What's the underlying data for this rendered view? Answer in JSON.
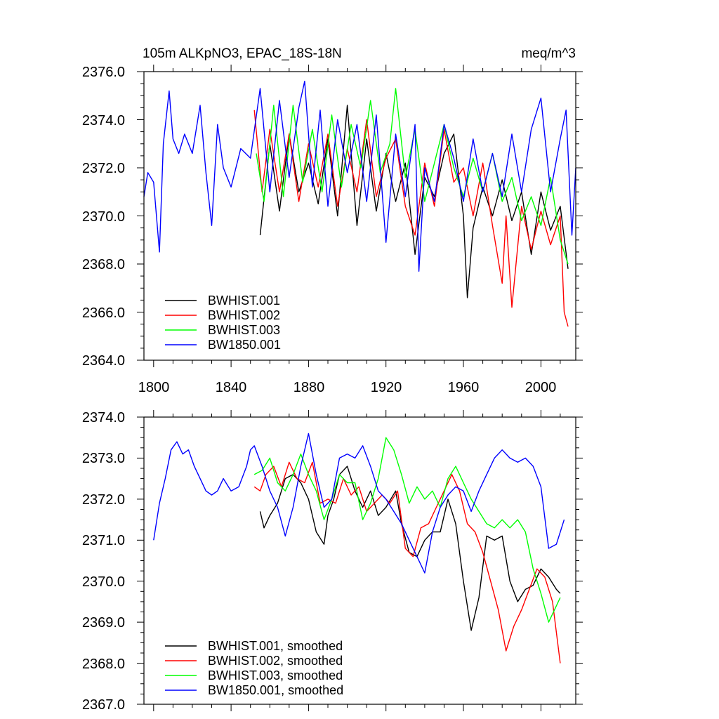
{
  "chart_data": [
    {
      "type": "line",
      "title": "105m ALKpNO3, EPAC_18S-18N",
      "units": "meq/m^3",
      "xlabel": "",
      "ylabel": "",
      "xlim": [
        1795,
        2018
      ],
      "ylim": [
        2364.0,
        2376.0
      ],
      "xticks": [
        1800,
        1840,
        1880,
        1920,
        1960,
        2000
      ],
      "xtick_labels": [
        "1800",
        "1840",
        "1880",
        "1920",
        "1960",
        "2000"
      ],
      "yticks": [
        2364,
        2366,
        2368,
        2370,
        2372,
        2374,
        2376
      ],
      "ytick_labels": [
        "2364.0",
        "2366.0",
        "2368.0",
        "2370.0",
        "2372.0",
        "2374.0",
        "2376.0"
      ],
      "legend_position": "bottom-left",
      "series": [
        {
          "name": "BWHIST.001",
          "color": "#000000",
          "x": [
            1855,
            1860,
            1865,
            1870,
            1875,
            1880,
            1885,
            1890,
            1895,
            1900,
            1905,
            1910,
            1915,
            1920,
            1925,
            1930,
            1935,
            1940,
            1945,
            1950,
            1955,
            1960,
            1962,
            1965,
            1970,
            1975,
            1980,
            1985,
            1990,
            1995,
            2000,
            2005,
            2010,
            2014
          ],
          "values": [
            2369.2,
            2373.0,
            2370.2,
            2373.4,
            2371.0,
            2372.2,
            2370.5,
            2373.2,
            2370.0,
            2374.6,
            2369.6,
            2373.2,
            2370.2,
            2372.6,
            2370.6,
            2372.2,
            2368.4,
            2371.6,
            2370.8,
            2372.6,
            2373.4,
            2370.0,
            2366.6,
            2369.5,
            2371.2,
            2370.0,
            2371.5,
            2369.8,
            2371.0,
            2368.4,
            2371.0,
            2369.4,
            2370.4,
            2367.8
          ]
        },
        {
          "name": "BWHIST.002",
          "color": "#ff0000",
          "x": [
            1852,
            1856,
            1860,
            1865,
            1870,
            1875,
            1880,
            1885,
            1890,
            1895,
            1900,
            1905,
            1910,
            1915,
            1920,
            1925,
            1930,
            1935,
            1940,
            1945,
            1950,
            1955,
            1960,
            1965,
            1970,
            1975,
            1980,
            1982,
            1985,
            1990,
            1995,
            2000,
            2005,
            2010,
            2012,
            2014
          ],
          "values": [
            2374.4,
            2371.0,
            2373.6,
            2371.0,
            2373.4,
            2370.6,
            2373.0,
            2371.2,
            2373.4,
            2370.4,
            2372.8,
            2371.0,
            2374.0,
            2370.8,
            2372.4,
            2373.2,
            2370.4,
            2369.2,
            2372.2,
            2370.4,
            2373.6,
            2371.4,
            2372.0,
            2370.0,
            2372.2,
            2369.6,
            2367.2,
            2370.0,
            2366.2,
            2370.4,
            2368.6,
            2370.2,
            2368.8,
            2370.0,
            2366.0,
            2365.4
          ]
        },
        {
          "name": "BWHIST.003",
          "color": "#00ff00",
          "x": [
            1853,
            1857,
            1862,
            1867,
            1872,
            1877,
            1882,
            1887,
            1892,
            1897,
            1902,
            1907,
            1912,
            1917,
            1922,
            1925,
            1930,
            1935,
            1940,
            1945,
            1950,
            1955,
            1960,
            1965,
            1970,
            1975,
            1980,
            1985,
            1990,
            1995,
            2000,
            2005,
            2010,
            2014
          ],
          "values": [
            2372.6,
            2370.6,
            2374.6,
            2370.8,
            2374.6,
            2371.4,
            2373.6,
            2371.0,
            2374.2,
            2371.2,
            2373.8,
            2372.0,
            2374.8,
            2371.8,
            2373.0,
            2375.3,
            2371.6,
            2373.6,
            2370.6,
            2372.2,
            2373.8,
            2372.0,
            2370.8,
            2372.4,
            2371.0,
            2372.6,
            2370.6,
            2371.6,
            2369.8,
            2370.8,
            2369.6,
            2371.6,
            2369.0,
            2368.0
          ]
        },
        {
          "name": "BW1850.001",
          "color": "#0000ff",
          "x": [
            1795,
            1797,
            1800,
            1803,
            1805,
            1808,
            1810,
            1813,
            1816,
            1820,
            1824,
            1827,
            1830,
            1833,
            1836,
            1840,
            1845,
            1850,
            1855,
            1860,
            1865,
            1870,
            1875,
            1878,
            1882,
            1886,
            1890,
            1895,
            1900,
            1905,
            1910,
            1915,
            1920,
            1925,
            1930,
            1935,
            1937,
            1940,
            1945,
            1950,
            1955,
            1960,
            1965,
            1970,
            1975,
            1980,
            1985,
            1990,
            1995,
            2000,
            2005,
            2010,
            2013,
            2016,
            2018
          ],
          "values": [
            2370.8,
            2371.8,
            2371.4,
            2368.5,
            2373.0,
            2375.2,
            2373.2,
            2372.6,
            2373.4,
            2372.6,
            2374.6,
            2371.8,
            2369.6,
            2373.8,
            2372.0,
            2371.2,
            2372.8,
            2372.4,
            2375.3,
            2371.0,
            2374.8,
            2371.6,
            2374.5,
            2375.6,
            2371.2,
            2374.4,
            2370.4,
            2374.0,
            2371.8,
            2373.8,
            2370.6,
            2374.2,
            2368.9,
            2373.4,
            2370.8,
            2373.8,
            2367.7,
            2372.0,
            2370.6,
            2373.8,
            2372.4,
            2370.6,
            2373.2,
            2371.0,
            2372.6,
            2370.8,
            2373.4,
            2371.0,
            2373.6,
            2374.9,
            2371.0,
            2373.2,
            2374.4,
            2369.2,
            2372.0
          ]
        }
      ]
    },
    {
      "type": "line",
      "title": "",
      "xlabel": "",
      "ylabel": "",
      "xlim": [
        1795,
        2018
      ],
      "ylim": [
        2367.0,
        2374.0
      ],
      "xticks": [
        1800,
        1840,
        1880,
        1920,
        1960,
        2000
      ],
      "yticks": [
        2367,
        2368,
        2369,
        2370,
        2371,
        2372,
        2373,
        2374
      ],
      "ytick_labels": [
        "2367.0",
        "2368.0",
        "2369.0",
        "2370.0",
        "2371.0",
        "2372.0",
        "2373.0",
        "2374.0"
      ],
      "legend_position": "bottom-left",
      "series": [
        {
          "name": "BWHIST.001, smoothed",
          "color": "#000000",
          "x": [
            1855,
            1857,
            1860,
            1864,
            1868,
            1872,
            1876,
            1880,
            1884,
            1888,
            1890,
            1893,
            1896,
            1900,
            1904,
            1908,
            1912,
            1916,
            1920,
            1925,
            1928,
            1932,
            1936,
            1940,
            1944,
            1948,
            1952,
            1956,
            1960,
            1964,
            1968,
            1972,
            1976,
            1980,
            1984,
            1988,
            1992,
            1996,
            2000,
            2004,
            2008,
            2010
          ],
          "values": [
            2371.7,
            2371.3,
            2371.6,
            2371.9,
            2372.5,
            2372.6,
            2372.4,
            2372.0,
            2371.2,
            2370.9,
            2371.6,
            2372.0,
            2372.6,
            2372.8,
            2372.2,
            2371.8,
            2372.2,
            2371.6,
            2371.8,
            2372.2,
            2371.4,
            2370.7,
            2370.6,
            2371.0,
            2371.2,
            2371.2,
            2372.0,
            2371.4,
            2370.0,
            2368.8,
            2369.6,
            2371.1,
            2371.0,
            2371.1,
            2370.0,
            2369.5,
            2369.8,
            2369.9,
            2370.3,
            2370.1,
            2369.8,
            2369.7
          ]
        },
        {
          "name": "BWHIST.002, smoothed",
          "color": "#ff0000",
          "x": [
            1852,
            1855,
            1858,
            1862,
            1866,
            1870,
            1874,
            1878,
            1882,
            1886,
            1890,
            1894,
            1898,
            1902,
            1906,
            1910,
            1914,
            1918,
            1922,
            1926,
            1930,
            1934,
            1938,
            1942,
            1946,
            1950,
            1954,
            1958,
            1962,
            1966,
            1970,
            1974,
            1978,
            1982,
            1986,
            1990,
            1994,
            1998,
            2002,
            2006,
            2010
          ],
          "values": [
            2372.3,
            2372.2,
            2372.6,
            2372.8,
            2372.3,
            2372.9,
            2372.5,
            2372.4,
            2372.9,
            2371.9,
            2372.0,
            2371.9,
            2372.5,
            2372.1,
            2372.3,
            2371.7,
            2371.9,
            2372.1,
            2371.9,
            2372.2,
            2370.8,
            2370.6,
            2371.3,
            2371.4,
            2371.8,
            2372.2,
            2372.6,
            2372.2,
            2371.4,
            2371.2,
            2370.7,
            2370.0,
            2369.3,
            2368.3,
            2368.9,
            2369.3,
            2369.8,
            2370.3,
            2370.1,
            2369.5,
            2368.0
          ]
        },
        {
          "name": "BWHIST.003, smoothed",
          "color": "#00ff00",
          "x": [
            1852,
            1856,
            1860,
            1864,
            1868,
            1872,
            1876,
            1880,
            1884,
            1888,
            1892,
            1896,
            1900,
            1904,
            1908,
            1912,
            1916,
            1920,
            1924,
            1928,
            1932,
            1936,
            1940,
            1944,
            1948,
            1952,
            1956,
            1960,
            1964,
            1968,
            1972,
            1976,
            1980,
            1984,
            1988,
            1992,
            1996,
            2000,
            2004,
            2008,
            2010
          ],
          "values": [
            2372.6,
            2372.7,
            2373.0,
            2372.4,
            2372.2,
            2372.6,
            2373.1,
            2372.6,
            2372.2,
            2371.5,
            2372.0,
            2372.6,
            2372.4,
            2372.4,
            2371.5,
            2371.9,
            2372.5,
            2373.5,
            2373.2,
            2372.6,
            2371.9,
            2372.3,
            2372.0,
            2372.2,
            2371.8,
            2372.5,
            2372.8,
            2372.4,
            2372.0,
            2371.7,
            2371.4,
            2371.3,
            2371.5,
            2371.3,
            2371.5,
            2371.2,
            2370.3,
            2369.7,
            2369.0,
            2369.4,
            2369.6
          ]
        },
        {
          "name": "BW1850.001, smoothed",
          "color": "#0000ff",
          "x": [
            1800,
            1803,
            1806,
            1809,
            1812,
            1815,
            1818,
            1821,
            1824,
            1827,
            1830,
            1833,
            1836,
            1840,
            1844,
            1848,
            1850,
            1852,
            1856,
            1860,
            1864,
            1868,
            1872,
            1876,
            1880,
            1884,
            1888,
            1892,
            1896,
            1900,
            1904,
            1908,
            1912,
            1916,
            1920,
            1924,
            1928,
            1932,
            1936,
            1940,
            1944,
            1948,
            1952,
            1956,
            1960,
            1964,
            1968,
            1972,
            1976,
            1980,
            1984,
            1988,
            1992,
            1996,
            2000,
            2004,
            2008,
            2012
          ],
          "values": [
            2371.0,
            2371.9,
            2372.5,
            2373.2,
            2373.4,
            2373.1,
            2373.2,
            2372.8,
            2372.5,
            2372.2,
            2372.1,
            2372.2,
            2372.5,
            2372.2,
            2372.3,
            2372.8,
            2373.2,
            2373.3,
            2372.8,
            2372.2,
            2371.8,
            2371.1,
            2371.8,
            2372.8,
            2373.6,
            2372.6,
            2371.8,
            2372.0,
            2373.0,
            2373.1,
            2373.0,
            2373.3,
            2372.8,
            2372.2,
            2372.0,
            2371.7,
            2371.4,
            2371.0,
            2370.6,
            2370.2,
            2371.2,
            2371.8,
            2372.1,
            2372.3,
            2372.2,
            2371.7,
            2372.2,
            2372.6,
            2373.0,
            2373.2,
            2373.0,
            2372.9,
            2373.0,
            2372.8,
            2372.3,
            2370.8,
            2370.9,
            2371.5
          ]
        }
      ]
    }
  ]
}
